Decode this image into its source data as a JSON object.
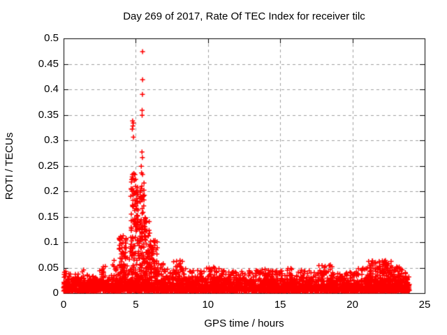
{
  "page": {
    "background_color": "#ffffff",
    "text_color": "#000000"
  },
  "chart_data": {
    "type": "scatter",
    "title": "Day 269 of 2017, Rate Of TEC Index for receiver tilc",
    "xlabel": "GPS time / hours",
    "ylabel": "ROTI / TECUs",
    "xlim": [
      0,
      25
    ],
    "ylim": [
      0,
      0.5
    ],
    "xticks": [
      0,
      5,
      10,
      15,
      20,
      25
    ],
    "yticks": [
      0,
      0.05,
      0.1,
      0.15,
      0.2,
      0.25,
      0.3,
      0.35,
      0.4,
      0.45,
      0.5
    ],
    "xtick_labels": [
      "0",
      "5",
      "10",
      "15",
      "20",
      "25"
    ],
    "ytick_labels": [
      "0",
      "0.05",
      "0.1",
      "0.15",
      "0.2",
      "0.25",
      "0.3",
      "0.35",
      "0.4",
      "0.45",
      "0.5"
    ],
    "grid": true,
    "grid_style": "dashed",
    "grid_color": "#a0a0a0",
    "axis_color": "#000000",
    "marker": "plus",
    "marker_color": "#ff0000",
    "data_hour_range": [
      0,
      23.95
    ],
    "peak_value": 0.474,
    "peak_hour": 5.47,
    "peak_points": [
      [
        5.47,
        0.474
      ],
      [
        5.47,
        0.419
      ],
      [
        5.46,
        0.39
      ],
      [
        5.44,
        0.359
      ],
      [
        5.44,
        0.349
      ],
      [
        4.78,
        0.338
      ],
      [
        4.83,
        0.334
      ],
      [
        4.8,
        0.328
      ],
      [
        4.76,
        0.322
      ],
      [
        4.84,
        0.306
      ],
      [
        5.43,
        0.277
      ],
      [
        5.46,
        0.266
      ],
      [
        5.38,
        0.249
      ],
      [
        5.4,
        0.236
      ],
      [
        5.47,
        0.233
      ],
      [
        4.75,
        0.228
      ],
      [
        4.7,
        0.218
      ],
      [
        5.57,
        0.216
      ],
      [
        5.42,
        0.21
      ],
      [
        5.12,
        0.208
      ],
      [
        4.68,
        0.205
      ],
      [
        4.9,
        0.195
      ],
      [
        4.65,
        0.19
      ],
      [
        5.3,
        0.198
      ],
      [
        5.5,
        0.192
      ]
    ],
    "noise_envelope": {
      "description": "piecewise segments [start_hour, end_hour, max_roti, density_weight] of dense + marker noise; baseline band ~0.005-0.035",
      "base_points_per_hour": 95,
      "floor_points_per_hour": 58,
      "floor_max": 0.028,
      "y_min": 0.004,
      "segments": [
        [
          0.0,
          0.25,
          0.055,
          1.4
        ],
        [
          0.25,
          1.25,
          0.038,
          1.0
        ],
        [
          1.25,
          1.5,
          0.048,
          1.0
        ],
        [
          1.5,
          2.5,
          0.036,
          1.0
        ],
        [
          2.5,
          2.9,
          0.055,
          1.1
        ],
        [
          2.9,
          3.35,
          0.04,
          1.0
        ],
        [
          3.35,
          3.6,
          0.068,
          1.2
        ],
        [
          3.6,
          3.85,
          0.05,
          1.0
        ],
        [
          3.85,
          4.35,
          0.115,
          2.3
        ],
        [
          4.35,
          4.6,
          0.07,
          1.2
        ],
        [
          4.6,
          5.02,
          0.235,
          2.6
        ],
        [
          5.02,
          5.6,
          0.205,
          3.4
        ],
        [
          5.6,
          5.98,
          0.155,
          2.4
        ],
        [
          5.98,
          6.5,
          0.105,
          2.0
        ],
        [
          6.5,
          7.0,
          0.06,
          1.2
        ],
        [
          7.0,
          7.55,
          0.048,
          1.0
        ],
        [
          7.55,
          8.45,
          0.065,
          1.2
        ],
        [
          8.45,
          9.8,
          0.045,
          1.0
        ],
        [
          9.8,
          10.55,
          0.055,
          1.1
        ],
        [
          10.55,
          11.4,
          0.052,
          1.1
        ],
        [
          11.4,
          13.0,
          0.045,
          1.0
        ],
        [
          13.0,
          14.05,
          0.052,
          1.0
        ],
        [
          14.05,
          15.5,
          0.045,
          1.0
        ],
        [
          15.5,
          16.6,
          0.05,
          1.0
        ],
        [
          16.6,
          17.6,
          0.045,
          1.0
        ],
        [
          17.6,
          18.6,
          0.058,
          1.1
        ],
        [
          18.6,
          20.4,
          0.042,
          1.0
        ],
        [
          20.4,
          21.1,
          0.05,
          1.0
        ],
        [
          21.1,
          22.8,
          0.066,
          1.8
        ],
        [
          22.8,
          23.95,
          0.052,
          1.2
        ]
      ],
      "seed": 42
    }
  }
}
